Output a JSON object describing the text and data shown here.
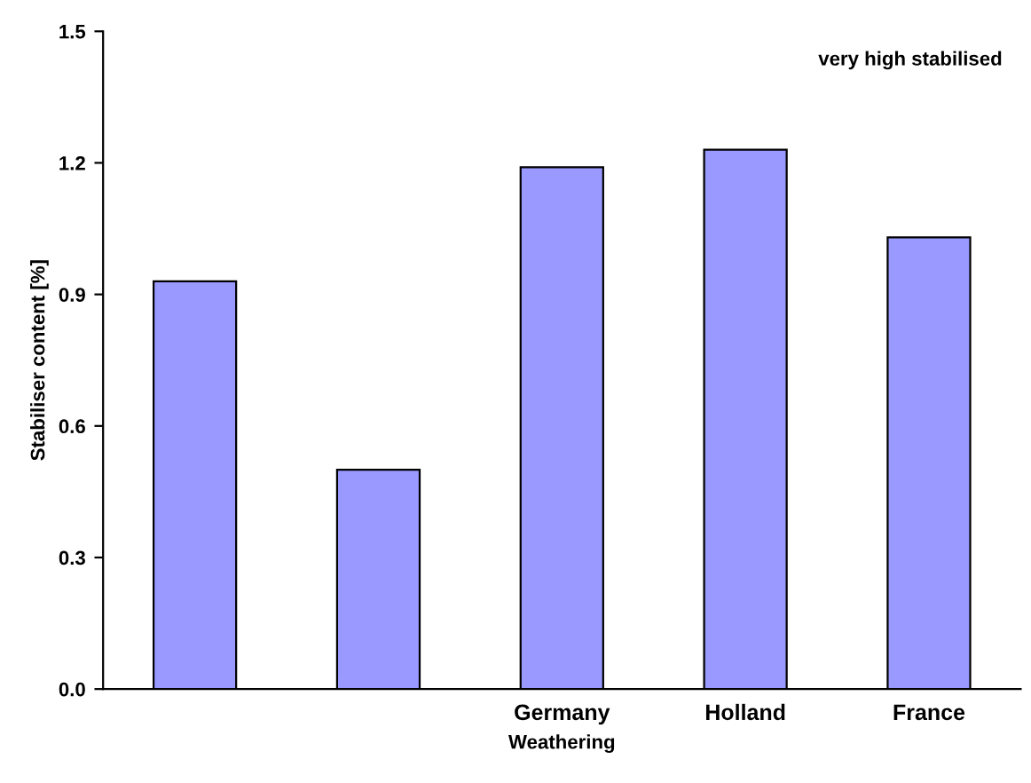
{
  "chart_data": {
    "type": "bar",
    "categories": [
      null,
      null,
      "Germany",
      "Holland",
      "France"
    ],
    "values": [
      0.93,
      0.5,
      1.19,
      1.23,
      1.03
    ],
    "color": "#9999ff",
    "xlabel": "Weathering",
    "ylabel": "Stabiliser content [%]",
    "annotations": [
      "very high stabilised"
    ],
    "ylim": [
      0,
      1.5
    ],
    "yticks": [
      {
        "value": 0,
        "label": "0.0"
      },
      0.3,
      0.6,
      0.9,
      1.2,
      1.5
    ],
    "grid": false
  }
}
